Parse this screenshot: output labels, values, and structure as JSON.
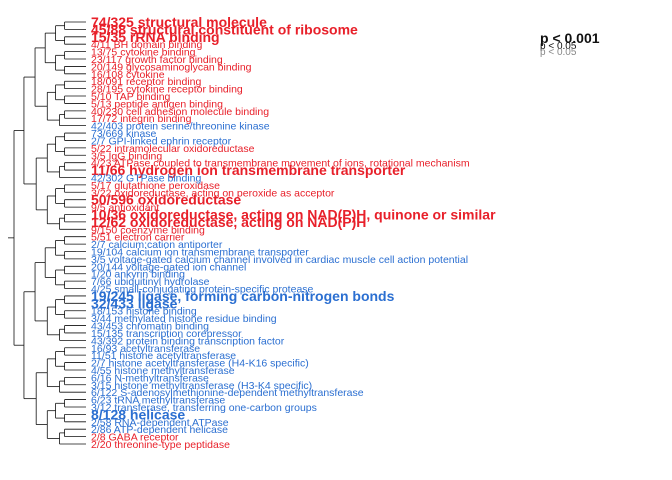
{
  "chart_data": {
    "type": "dendrogram-labeled-list",
    "colors": {
      "up": "#e8202a",
      "down": "#2b6fd1",
      "legend_strong": "#111111",
      "legend_weak": "#888888",
      "tree": "#111111"
    },
    "legend": [
      {
        "text": "p < 0.001",
        "level": "strong"
      },
      {
        "text": "p < 0.05",
        "level": "mid"
      },
      {
        "text": "p < 0.05",
        "level": "weak"
      }
    ],
    "terms": [
      {
        "label": "74/325 structural molecule",
        "color": "up",
        "size": "large"
      },
      {
        "label": "45/88 structural constituent of ribosome",
        "color": "up",
        "size": "large"
      },
      {
        "label": "15/35 rRNA binding",
        "color": "up",
        "size": "large"
      },
      {
        "label": "4/11 BH domain binding",
        "color": "up",
        "size": "small"
      },
      {
        "label": "13/75 cytokine binding",
        "color": "up",
        "size": "small"
      },
      {
        "label": "23/117 growth factor binding",
        "color": "up",
        "size": "small"
      },
      {
        "label": "20/149 glycosaminoglycan binding",
        "color": "up",
        "size": "small"
      },
      {
        "label": "16/108 cytokine",
        "color": "up",
        "size": "small"
      },
      {
        "label": "18/091 receptor binding",
        "color": "up",
        "size": "small"
      },
      {
        "label": "28/195 cytokine receptor binding",
        "color": "up",
        "size": "small"
      },
      {
        "label": "5/10 TAP binding",
        "color": "up",
        "size": "small"
      },
      {
        "label": "5/13 peptide antigen binding",
        "color": "up",
        "size": "small"
      },
      {
        "label": "40/230 cell adhesion molecule binding",
        "color": "up",
        "size": "small"
      },
      {
        "label": "17/72 integrin binding",
        "color": "up",
        "size": "small"
      },
      {
        "label": "42/403 protein serine/threonine kinase",
        "color": "down",
        "size": "small"
      },
      {
        "label": "73/669 kinase",
        "color": "down",
        "size": "small"
      },
      {
        "label": "2/7 GPI-linked ephrin receptor",
        "color": "down",
        "size": "small"
      },
      {
        "label": "5/22 intramolecular oxidoreductase",
        "color": "up",
        "size": "small"
      },
      {
        "label": "3/5 IgG binding",
        "color": "up",
        "size": "small"
      },
      {
        "label": "4/23 ATPase coupled to transmembrane movement of ions, rotational mechanism",
        "color": "up",
        "size": "small"
      },
      {
        "label": "11/66 hydrogen ion transmembrane transporter",
        "color": "up",
        "size": "large"
      },
      {
        "label": "42/302 GTPase binding",
        "color": "down",
        "size": "small"
      },
      {
        "label": "5/17 glutathione peroxidase",
        "color": "up",
        "size": "small"
      },
      {
        "label": "3/22 oxidoreductase, acting on peroxide as acceptor",
        "color": "up",
        "size": "small"
      },
      {
        "label": "50/596 oxidoreductase",
        "color": "up",
        "size": "large"
      },
      {
        "label": "9/5 antioxidant",
        "color": "up",
        "size": "small"
      },
      {
        "label": "10/36 oxidoreductase, acting on NAD(P)H, quinone or similar",
        "color": "up",
        "size": "large"
      },
      {
        "label": "12/62 oxidoreductase, acting on NAD(P)H",
        "color": "up",
        "size": "large"
      },
      {
        "label": "9/150 coenzyme binding",
        "color": "up",
        "size": "small"
      },
      {
        "label": "5/51 electron carrier",
        "color": "up",
        "size": "small"
      },
      {
        "label": "2/7 calcium:cation antiporter",
        "color": "down",
        "size": "small"
      },
      {
        "label": "19/104 calcium ion transmembrane transporter",
        "color": "down",
        "size": "small"
      },
      {
        "label": "3/5 voltage-gated calcium channel involved in cardiac muscle cell action potential",
        "color": "down",
        "size": "small"
      },
      {
        "label": "20/144 voltage-gated ion channel",
        "color": "down",
        "size": "small"
      },
      {
        "label": "1/20 ankyrin binding",
        "color": "down",
        "size": "small"
      },
      {
        "label": "7/66 ubiquitinyl hydrolase",
        "color": "down",
        "size": "small"
      },
      {
        "label": "4/25 small-conjugating protein-specific protease",
        "color": "down",
        "size": "small"
      },
      {
        "label": "19/245 ligase, forming carbon-nitrogen bonds",
        "color": "down",
        "size": "large"
      },
      {
        "label": "32/433 ligase",
        "color": "down",
        "size": "large"
      },
      {
        "label": "18/153 histone binding",
        "color": "down",
        "size": "small"
      },
      {
        "label": "3/44 methylated histone residue binding",
        "color": "down",
        "size": "small"
      },
      {
        "label": "43/453 chromatin binding",
        "color": "down",
        "size": "small"
      },
      {
        "label": "15/135 transcription corepressor",
        "color": "down",
        "size": "small"
      },
      {
        "label": "43/392 protein binding transcription factor",
        "color": "down",
        "size": "small"
      },
      {
        "label": "16/93 acetyltransferase",
        "color": "down",
        "size": "small"
      },
      {
        "label": "11/51 histone acetyltransferase",
        "color": "down",
        "size": "small"
      },
      {
        "label": "2/7 histone acetyltransferase (H4-K16 specific)",
        "color": "down",
        "size": "small"
      },
      {
        "label": "4/55 histone methyltransferase",
        "color": "down",
        "size": "small"
      },
      {
        "label": "6/16 N-methyltransferase",
        "color": "down",
        "size": "small"
      },
      {
        "label": "3/15 histone methyltransferase (H3-K4 specific)",
        "color": "down",
        "size": "small"
      },
      {
        "label": "6/122 S-adenosylmethionine-dependent methyltransferase",
        "color": "down",
        "size": "small"
      },
      {
        "label": "6/23 tRNA methyltransferase",
        "color": "down",
        "size": "small"
      },
      {
        "label": "3/12 transferase, transferring one-carbon groups",
        "color": "down",
        "size": "small"
      },
      {
        "label": "8/128 helicase",
        "color": "down",
        "size": "large"
      },
      {
        "label": "2/58 RNA-dependent ATPase",
        "color": "down",
        "size": "small"
      },
      {
        "label": "2/86 ATP-dependent helicase",
        "color": "down",
        "size": "small"
      },
      {
        "label": "2/8 GABA receptor",
        "color": "up",
        "size": "small"
      },
      {
        "label": "2/20 threonine-type peptidase",
        "color": "up",
        "size": "small"
      }
    ]
  }
}
